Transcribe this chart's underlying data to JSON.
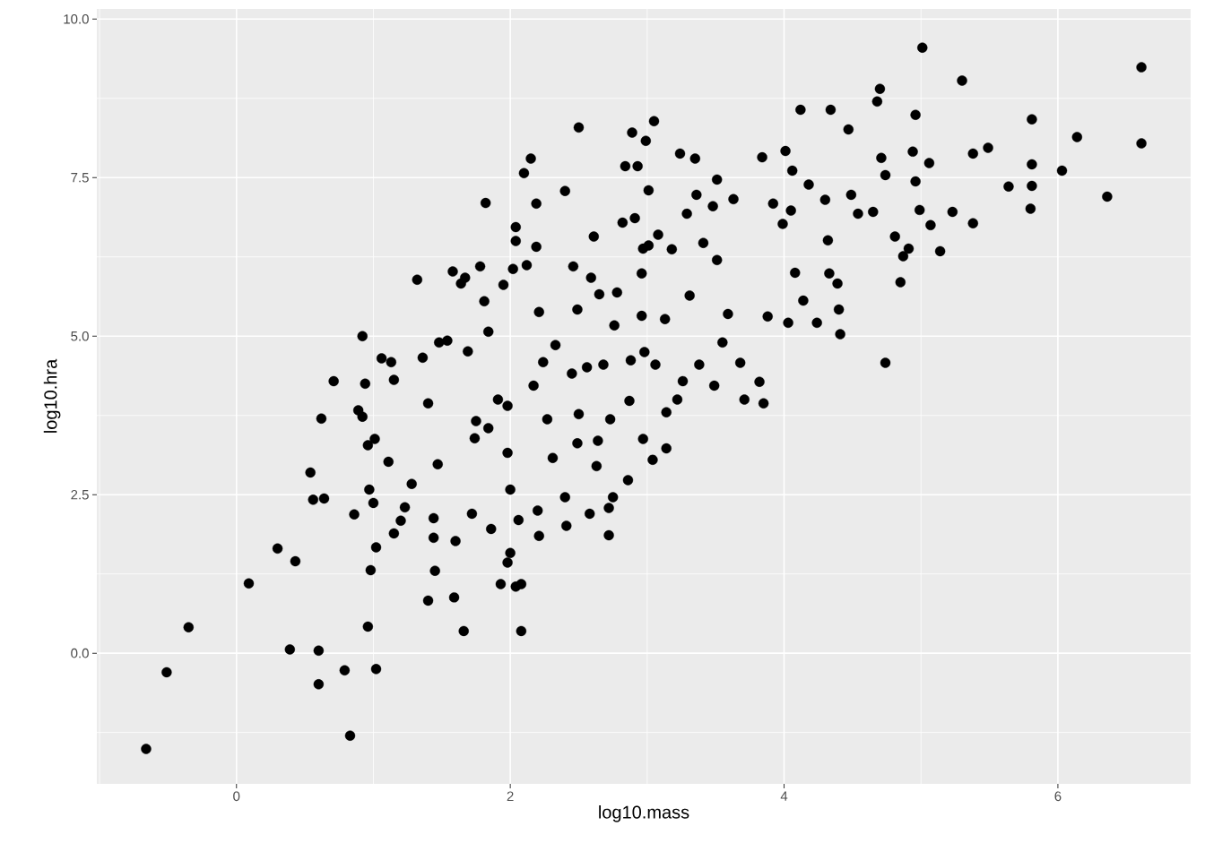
{
  "chart_data": {
    "type": "scatter",
    "xlabel": "log10.mass",
    "ylabel": "log10.hra",
    "xlim": [
      -1.02,
      6.97
    ],
    "ylim": [
      -2.06,
      10.16
    ],
    "xticks": [
      0,
      2,
      4,
      6
    ],
    "yticks": [
      {
        "value": 0,
        "label": "0.0"
      },
      {
        "value": 2.5,
        "label": "2.5"
      },
      {
        "value": 5,
        "label": "5.0"
      },
      {
        "value": 7.5,
        "label": "7.5"
      },
      {
        "value": 10,
        "label": "10.0"
      }
    ],
    "grid": true,
    "marker": "circle",
    "color": "#000000",
    "x": [
      -0.66,
      -0.51,
      -0.35,
      0.09,
      0.3,
      0.43,
      0.39,
      0.6,
      0.6,
      0.79,
      0.83,
      1.02,
      0.96,
      0.98,
      0.54,
      0.56,
      0.64,
      0.62,
      0.71,
      0.86,
      0.92,
      0.94,
      0.89,
      0.96,
      0.92,
      1.06,
      1.15,
      1.13,
      1.01,
      1.11,
      1.02,
      1.0,
      0.97,
      1.15,
      1.2,
      1.23,
      1.28,
      1.32,
      1.36,
      1.4,
      1.4,
      1.45,
      1.44,
      1.44,
      1.47,
      1.48,
      1.54,
      1.58,
      1.59,
      1.6,
      1.66,
      1.64,
      1.67,
      1.69,
      1.75,
      1.72,
      1.74,
      1.78,
      1.82,
      1.81,
      1.84,
      1.86,
      1.84,
      1.91,
      1.95,
      1.93,
      1.98,
      2.0,
      2.0,
      1.98,
      1.98,
      2.02,
      2.04,
      2.04,
      2.08,
      2.08,
      2.06,
      2.04,
      2.1,
      2.15,
      2.19,
      2.12,
      2.19,
      2.21,
      2.17,
      2.2,
      2.21,
      2.24,
      2.27,
      2.33,
      2.31,
      2.4,
      2.41,
      2.4,
      2.46,
      2.49,
      2.5,
      2.5,
      2.49,
      2.45,
      2.56,
      2.58,
      2.59,
      2.61,
      2.63,
      2.64,
      2.65,
      2.68,
      2.72,
      2.72,
      2.75,
      2.78,
      2.73,
      2.76,
      2.82,
      2.84,
      2.86,
      2.87,
      2.88,
      2.89,
      2.91,
      2.93,
      2.96,
      2.96,
      2.97,
      2.97,
      2.98,
      2.99,
      3.01,
      3.01,
      3.04,
      3.05,
      3.06,
      3.08,
      3.13,
      3.14,
      3.14,
      3.18,
      3.22,
      3.24,
      3.26,
      3.29,
      3.31,
      3.35,
      3.36,
      3.38,
      3.41,
      3.48,
      3.49,
      3.51,
      3.51,
      3.55,
      3.59,
      3.63,
      3.68,
      3.71,
      3.82,
      3.85,
      3.84,
      3.88,
      3.92,
      3.99,
      4.01,
      4.03,
      4.05,
      4.06,
      4.12,
      4.08,
      4.14,
      4.18,
      4.24,
      4.3,
      4.32,
      4.33,
      4.34,
      4.39,
      4.4,
      4.41,
      4.47,
      4.49,
      4.54,
      4.65,
      4.68,
      4.7,
      4.71,
      4.74,
      4.74,
      4.81,
      4.85,
      4.87,
      4.91,
      4.94,
      4.96,
      4.96,
      4.99,
      5.01,
      5.06,
      5.07,
      5.14,
      5.23,
      5.3,
      5.38,
      5.38,
      5.49,
      5.64,
      5.8,
      5.81,
      5.81,
      5.81,
      6.03,
      6.14,
      6.36,
      6.61,
      6.61
    ],
    "values": [
      -1.51,
      -0.3,
      0.41,
      1.1,
      1.65,
      1.45,
      0.06,
      0.04,
      -0.49,
      -0.27,
      -1.3,
      -0.25,
      0.42,
      1.31,
      2.85,
      2.42,
      2.44,
      3.7,
      4.29,
      2.19,
      3.73,
      4.25,
      3.83,
      3.28,
      5.0,
      4.65,
      4.31,
      4.59,
      3.38,
      3.02,
      1.67,
      2.37,
      2.58,
      1.89,
      2.09,
      2.3,
      2.67,
      5.89,
      4.66,
      3.94,
      0.83,
      1.3,
      1.82,
      2.13,
      2.98,
      4.9,
      4.93,
      6.02,
      0.88,
      1.77,
      0.35,
      5.83,
      5.92,
      4.76,
      3.66,
      2.2,
      3.39,
      6.1,
      7.1,
      5.55,
      5.07,
      1.96,
      3.55,
      4.0,
      5.81,
      1.09,
      1.43,
      1.58,
      2.58,
      3.16,
      3.9,
      6.06,
      6.72,
      1.05,
      1.09,
      0.35,
      2.1,
      6.5,
      7.57,
      7.8,
      7.09,
      6.12,
      6.41,
      5.38,
      4.22,
      2.25,
      1.85,
      4.59,
      3.69,
      4.86,
      3.08,
      7.29,
      2.01,
      2.46,
      6.1,
      5.42,
      8.29,
      3.77,
      3.31,
      4.41,
      4.51,
      2.2,
      5.92,
      6.57,
      2.95,
      3.35,
      5.66,
      4.55,
      1.86,
      2.29,
      2.46,
      5.69,
      3.69,
      5.17,
      6.79,
      7.68,
      2.73,
      3.98,
      4.62,
      8.21,
      6.86,
      7.68,
      5.99,
      5.32,
      3.38,
      6.38,
      4.75,
      8.08,
      7.3,
      6.43,
      3.05,
      8.39,
      4.55,
      6.6,
      5.27,
      3.23,
      3.8,
      6.37,
      4.0,
      7.88,
      4.29,
      6.93,
      5.64,
      7.8,
      7.23,
      4.55,
      6.47,
      7.05,
      4.22,
      7.47,
      6.2,
      4.9,
      5.35,
      7.16,
      4.58,
      4.0,
      4.28,
      3.94,
      7.82,
      5.31,
      7.09,
      6.77,
      7.92,
      5.21,
      6.98,
      7.61,
      8.57,
      6.0,
      5.56,
      7.39,
      5.21,
      7.15,
      6.51,
      5.99,
      8.57,
      5.83,
      5.42,
      5.03,
      8.26,
      7.23,
      6.93,
      6.96,
      8.7,
      8.9,
      7.81,
      7.54,
      4.58,
      6.57,
      5.85,
      6.26,
      6.38,
      7.91,
      8.49,
      7.44,
      6.99,
      9.55,
      7.73,
      6.75,
      6.34,
      6.96,
      9.03,
      6.78,
      7.88,
      7.97,
      7.36,
      7.01,
      8.42,
      7.71,
      7.37,
      7.61,
      8.14,
      7.2,
      9.24,
      8.04
    ]
  }
}
